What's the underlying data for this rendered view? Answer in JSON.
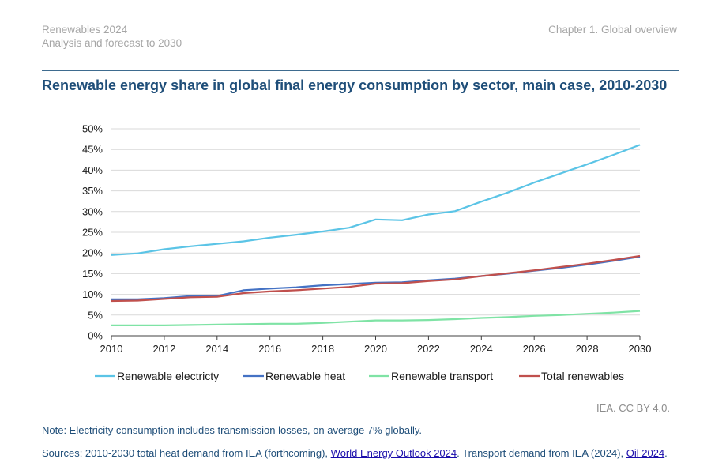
{
  "header": {
    "report_title": "Renewables 2024",
    "report_subtitle": "Analysis and forecast to 2030",
    "chapter": "Chapter 1. Global overview"
  },
  "figure": {
    "title": "Renewable energy share in global final energy consumption by sector, main case, 2010-2030",
    "credit": "IEA. CC BY 4.0.",
    "note": "Note: Electricity consumption includes transmission losses, on average 7% globally.",
    "sources": {
      "text_1": "Sources: 2010-2030 total heat demand from IEA (forthcoming), ",
      "link_1": "World Energy Outlook 2024",
      "text_2": ". Transport demand from IEA (2024), ",
      "link_2": "Oil 2024",
      "text_3": "."
    }
  },
  "chart_data": {
    "type": "line",
    "title": "Renewable energy share in global final energy consumption by sector, main case, 2010-2030",
    "xlabel": "",
    "ylabel": "",
    "x": [
      2010,
      2011,
      2012,
      2013,
      2014,
      2015,
      2016,
      2017,
      2018,
      2019,
      2020,
      2021,
      2022,
      2023,
      2024,
      2025,
      2026,
      2027,
      2028,
      2029,
      2030
    ],
    "xlim": [
      2010,
      2030
    ],
    "x_ticks": [
      2010,
      2012,
      2014,
      2016,
      2018,
      2020,
      2022,
      2024,
      2026,
      2028,
      2030
    ],
    "x_tick_labels": [
      "2010",
      "2012",
      "2014",
      "2016",
      "2018",
      "2020",
      "2022",
      "2024",
      "2026",
      "2028",
      "2030"
    ],
    "ylim": [
      0,
      50
    ],
    "y_ticks": [
      0,
      5,
      10,
      15,
      20,
      25,
      30,
      35,
      40,
      45,
      50
    ],
    "y_tick_labels": [
      "0%",
      "5%",
      "10%",
      "15%",
      "20%",
      "25%",
      "30%",
      "35%",
      "40%",
      "45%",
      "50%"
    ],
    "grid": "horizontal",
    "legend_position": "bottom",
    "series": [
      {
        "name": "Renewable electricty",
        "color": "#5bc4e6",
        "values": [
          19.5,
          19.9,
          20.9,
          21.6,
          22.2,
          22.8,
          23.7,
          24.4,
          25.2,
          26.1,
          28.1,
          27.9,
          29.3,
          30.1,
          32.4,
          34.6,
          37.0,
          39.2,
          41.4,
          43.7,
          46.1
        ]
      },
      {
        "name": "Renewable heat",
        "color": "#4472c4",
        "values": [
          8.8,
          8.8,
          9.1,
          9.6,
          9.6,
          11.0,
          11.4,
          11.7,
          12.2,
          12.5,
          12.8,
          12.9,
          13.4,
          13.8,
          14.4,
          15.0,
          15.7,
          16.4,
          17.2,
          18.1,
          19.1
        ]
      },
      {
        "name": "Renewable transport",
        "color": "#7fe3a5",
        "values": [
          2.5,
          2.5,
          2.5,
          2.6,
          2.7,
          2.8,
          2.9,
          2.9,
          3.1,
          3.4,
          3.7,
          3.7,
          3.8,
          4.0,
          4.3,
          4.5,
          4.8,
          5.0,
          5.3,
          5.6,
          6.0
        ]
      },
      {
        "name": "Total renewables",
        "color": "#c0504d",
        "values": [
          8.4,
          8.5,
          8.9,
          9.3,
          9.4,
          10.3,
          10.7,
          11.0,
          11.4,
          11.8,
          12.6,
          12.7,
          13.2,
          13.6,
          14.4,
          15.1,
          15.8,
          16.6,
          17.4,
          18.3,
          19.3
        ]
      }
    ]
  }
}
